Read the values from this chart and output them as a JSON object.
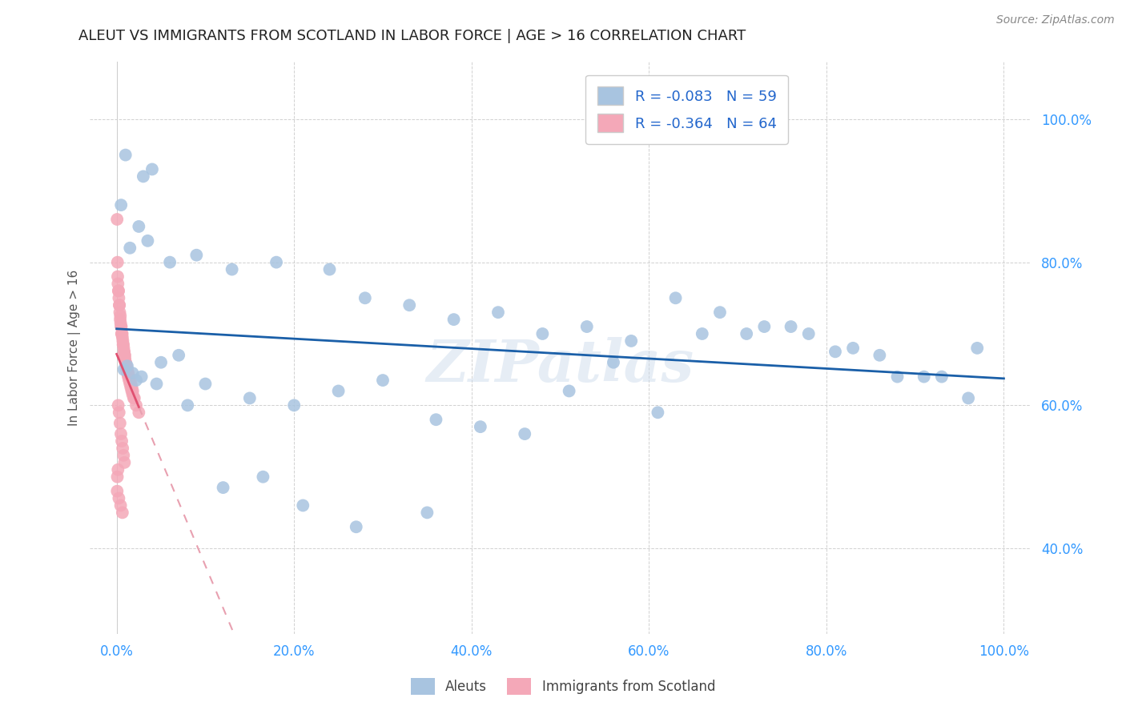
{
  "title": "ALEUT VS IMMIGRANTS FROM SCOTLAND IN LABOR FORCE | AGE > 16 CORRELATION CHART",
  "source": "Source: ZipAtlas.com",
  "ylabel": "In Labor Force | Age > 16",
  "aleuts_R": "-0.083",
  "aleuts_N": "59",
  "scotland_R": "-0.364",
  "scotland_N": "64",
  "aleut_color": "#a8c4e0",
  "scotland_color": "#f4a8b8",
  "trend_aleut_color": "#1a5fa8",
  "trend_scotland_solid_color": "#e05070",
  "trend_scotland_dash_color": "#e8a0b0",
  "watermark": "ZIPatlas",
  "background_color": "#ffffff",
  "x_ticks": [
    0,
    20,
    40,
    60,
    80,
    100
  ],
  "y_ticks": [
    40,
    60,
    80,
    100
  ],
  "xlim": [
    -3,
    103
  ],
  "ylim": [
    28,
    108
  ],
  "aleuts_x": [
    1.0,
    3.0,
    4.0,
    0.5,
    2.5,
    3.5,
    1.5,
    6.0,
    9.0,
    13.0,
    18.0,
    24.0,
    28.0,
    33.0,
    38.0,
    43.0,
    48.0,
    53.0,
    58.0,
    63.0,
    68.0,
    73.0,
    78.0,
    83.0,
    88.0,
    93.0,
    97.0,
    0.8,
    1.8,
    2.8,
    5.0,
    7.0,
    10.0,
    15.0,
    20.0,
    25.0,
    30.0,
    36.0,
    41.0,
    46.0,
    51.0,
    56.0,
    61.0,
    66.0,
    71.0,
    76.0,
    81.0,
    86.0,
    91.0,
    96.0,
    1.2,
    2.2,
    4.5,
    8.0,
    12.0,
    16.5,
    21.0,
    27.0,
    35.0
  ],
  "aleuts_y": [
    95.0,
    92.0,
    93.0,
    88.0,
    85.0,
    83.0,
    82.0,
    80.0,
    81.0,
    79.0,
    80.0,
    79.0,
    75.0,
    74.0,
    72.0,
    73.0,
    70.0,
    71.0,
    69.0,
    75.0,
    73.0,
    71.0,
    70.0,
    68.0,
    64.0,
    64.0,
    68.0,
    65.0,
    64.5,
    64.0,
    66.0,
    67.0,
    63.0,
    61.0,
    60.0,
    62.0,
    63.5,
    58.0,
    57.0,
    56.0,
    62.0,
    66.0,
    59.0,
    70.0,
    70.0,
    71.0,
    67.5,
    67.0,
    64.0,
    61.0,
    65.5,
    63.5,
    63.0,
    60.0,
    48.5,
    50.0,
    46.0,
    43.0,
    45.0
  ],
  "scotland_x": [
    0.05,
    0.1,
    0.15,
    0.2,
    0.25,
    0.3,
    0.35,
    0.4,
    0.45,
    0.5,
    0.55,
    0.6,
    0.65,
    0.7,
    0.75,
    0.8,
    0.85,
    0.9,
    0.95,
    1.0,
    1.1,
    1.2,
    1.3,
    1.4,
    1.5,
    1.6,
    1.7,
    1.8,
    2.0,
    2.2,
    2.5,
    0.12,
    0.22,
    0.32,
    0.42,
    0.52,
    0.62,
    0.72,
    0.82,
    0.92,
    1.02,
    1.12,
    1.22,
    1.32,
    1.42,
    1.52,
    1.62,
    1.72,
    1.82,
    1.92,
    0.18,
    0.28,
    0.38,
    0.48,
    0.58,
    0.68,
    0.78,
    0.88,
    0.15,
    0.08,
    0.06,
    0.25,
    0.45,
    0.65
  ],
  "scotland_y": [
    86.0,
    80.0,
    77.0,
    76.0,
    75.0,
    74.0,
    73.0,
    72.0,
    71.5,
    71.0,
    70.0,
    70.0,
    69.5,
    69.0,
    68.5,
    68.0,
    67.5,
    67.0,
    66.5,
    66.0,
    65.0,
    64.5,
    64.0,
    63.5,
    63.0,
    62.5,
    62.0,
    61.5,
    61.0,
    60.0,
    59.0,
    78.0,
    76.0,
    74.0,
    72.5,
    71.0,
    70.0,
    68.5,
    67.5,
    67.0,
    66.0,
    65.5,
    65.0,
    64.5,
    64.0,
    63.5,
    63.0,
    62.5,
    62.0,
    61.0,
    60.0,
    59.0,
    57.5,
    56.0,
    55.0,
    54.0,
    53.0,
    52.0,
    51.0,
    50.0,
    48.0,
    47.0,
    46.0,
    45.0
  ]
}
